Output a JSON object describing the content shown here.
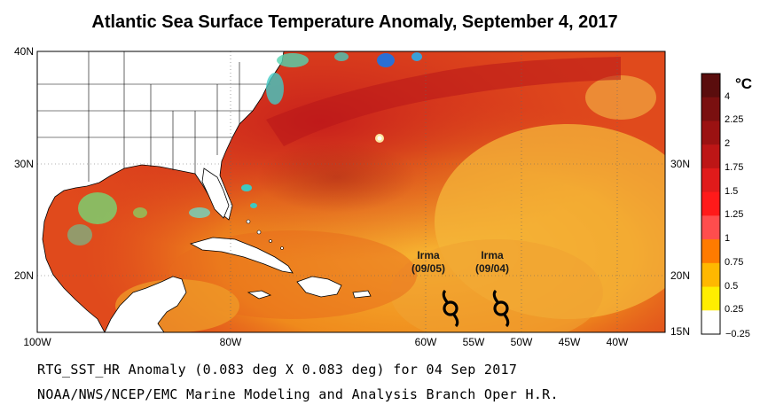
{
  "title": "Atlantic Sea Surface Temperature Anomaly, September 4, 2017",
  "map": {
    "lat_labels_left": [
      "40N",
      "30N",
      "20N"
    ],
    "lat_labels_right": [
      "30N",
      "20N",
      "15N"
    ],
    "lon_labels": [
      "100W",
      "80W",
      "60W",
      "55W",
      "50W",
      "45W",
      "40W"
    ]
  },
  "colorbar": {
    "unit": "°C",
    "ticks": [
      "4",
      "2.25",
      "2",
      "1.75",
      "1.5",
      "1.25",
      "1",
      "0.75",
      "0.5",
      "0.25",
      "−0.25"
    ],
    "colors": [
      "#5a0d0d",
      "#7a1010",
      "#9b1212",
      "#bd1616",
      "#e01b1b",
      "#ff1a1a",
      "#ff4d4d",
      "#ff7b00",
      "#ffb800",
      "#ffee00",
      "#ffffff"
    ]
  },
  "storms": [
    {
      "name": "Irma",
      "date": "(09/05)"
    },
    {
      "name": "Irma",
      "date": "(09/04)"
    }
  ],
  "footer": {
    "line1": "RTG_SST_HR Anomaly (0.083 deg X 0.083 deg) for 04 Sep 2017",
    "line2": "NOAA/NWS/NCEP/EMC Marine Modeling and Analysis Branch Oper H.R."
  }
}
